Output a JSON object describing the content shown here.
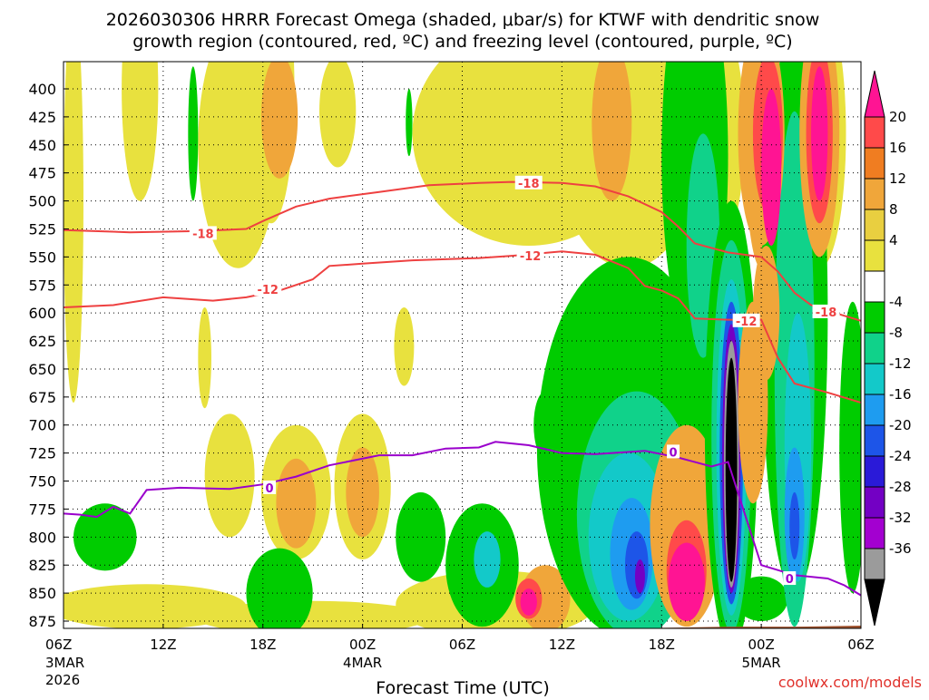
{
  "chart_data": {
    "type": "heatmap",
    "title_line1": "2026030306 HRRR Forecast Omega (shaded, μbar/s) for KTWF with dendritic snow",
    "title_line2": "growth region (contoured, red, ºC) and freezing level (contoured, purple, ºC)",
    "xlabel": "Forecast Time (UTC)",
    "credit": "coolwx.com/models",
    "x_hours_range": [
      0,
      48
    ],
    "y_range_hpa": [
      380,
      890
    ],
    "y_ticks": [
      400,
      425,
      450,
      475,
      500,
      525,
      550,
      575,
      600,
      625,
      650,
      675,
      700,
      725,
      750,
      775,
      800,
      825,
      850,
      875
    ],
    "x_ticks": [
      {
        "h": 0,
        "label": "06Z",
        "sub1": "3MAR",
        "sub2": "2026"
      },
      {
        "h": 6,
        "label": "12Z"
      },
      {
        "h": 12,
        "label": "18Z"
      },
      {
        "h": 18,
        "label": "00Z",
        "sub1": "4MAR"
      },
      {
        "h": 24,
        "label": "06Z"
      },
      {
        "h": 30,
        "label": "12Z"
      },
      {
        "h": 36,
        "label": "18Z"
      },
      {
        "h": 42,
        "label": "00Z",
        "sub1": "5MAR"
      },
      {
        "h": 48,
        "label": "06Z"
      }
    ],
    "colorbar": {
      "labels": [
        "20",
        "16",
        "12",
        "8",
        "4",
        "-4",
        "-8",
        "-12",
        "-16",
        "-20",
        "-24",
        "-28",
        "-32",
        "-36"
      ],
      "colors": [
        "#ff1493",
        "#ff4a4a",
        "#f07d21",
        "#f0a63a",
        "#e9cf40",
        "#e8e13e",
        "#ffffff",
        "#00cc00",
        "#10d28a",
        "#13c9c9",
        "#1e9cf0",
        "#1d55e8",
        "#2a1ad8",
        "#7300c4",
        "#a300d0",
        "#9b9b9b",
        "#000000"
      ]
    },
    "contours": [
      {
        "name": "-18 ºC",
        "label": "-18",
        "color": "#ee4040",
        "points": [
          [
            0,
            526
          ],
          [
            4,
            528
          ],
          [
            8,
            527
          ],
          [
            11,
            525
          ],
          [
            12,
            518
          ],
          [
            14,
            505
          ],
          [
            16,
            498
          ],
          [
            19,
            492
          ],
          [
            22,
            486
          ],
          [
            25,
            484
          ],
          [
            27,
            483
          ],
          [
            30,
            484
          ],
          [
            32,
            487
          ],
          [
            34,
            496
          ],
          [
            36,
            510
          ],
          [
            37,
            523
          ],
          [
            38,
            538
          ],
          [
            40,
            546
          ],
          [
            42,
            550
          ],
          [
            43,
            563
          ],
          [
            44,
            582
          ],
          [
            45,
            593
          ],
          [
            46,
            598
          ],
          [
            48,
            607
          ]
        ]
      },
      {
        "name": "-12 ºC",
        "label": "-12",
        "color": "#ee4040",
        "points": [
          [
            0,
            595
          ],
          [
            3,
            593
          ],
          [
            6,
            586
          ],
          [
            9,
            589
          ],
          [
            11,
            586
          ],
          [
            13,
            580
          ],
          [
            15,
            570
          ],
          [
            16,
            558
          ],
          [
            18,
            556
          ],
          [
            21,
            553
          ],
          [
            25,
            551
          ],
          [
            27,
            549
          ],
          [
            30,
            545
          ],
          [
            32,
            548
          ],
          [
            34,
            560
          ],
          [
            35,
            576
          ],
          [
            36,
            580
          ],
          [
            37,
            587
          ],
          [
            38,
            605
          ],
          [
            40,
            606
          ],
          [
            42,
            606
          ],
          [
            43,
            640
          ],
          [
            44,
            663
          ],
          [
            46,
            671
          ],
          [
            48,
            680
          ]
        ]
      },
      {
        "name": "0 ºC",
        "label": "0",
        "color": "#9a00cc",
        "points": [
          [
            0,
            779
          ],
          [
            1,
            780
          ],
          [
            2,
            782
          ],
          [
            3,
            773
          ],
          [
            4,
            779
          ],
          [
            5,
            758
          ],
          [
            7,
            756
          ],
          [
            10,
            757
          ],
          [
            12,
            753
          ],
          [
            14,
            746
          ],
          [
            16,
            736
          ],
          [
            19,
            727
          ],
          [
            21,
            727
          ],
          [
            23,
            721
          ],
          [
            25,
            720
          ],
          [
            26,
            715
          ],
          [
            28,
            718
          ],
          [
            30,
            725
          ],
          [
            32,
            726
          ],
          [
            35,
            723
          ],
          [
            37,
            729
          ],
          [
            39,
            737
          ],
          [
            40,
            733
          ],
          [
            42,
            825
          ],
          [
            44,
            834
          ],
          [
            46,
            837
          ],
          [
            47,
            843
          ],
          [
            48,
            852
          ]
        ]
      }
    ],
    "contour_labels": [
      {
        "text": "-18",
        "h": 8.4,
        "p": 529
      },
      {
        "text": "-18",
        "h": 28.0,
        "p": 484
      },
      {
        "text": "-18",
        "h": 45.9,
        "p": 599
      },
      {
        "text": "-12",
        "h": 12.3,
        "p": 579
      },
      {
        "text": "-12",
        "h": 28.1,
        "p": 549
      },
      {
        "text": "-12",
        "h": 41.1,
        "p": 607
      },
      {
        "text": "0",
        "h": 12.4,
        "p": 756
      },
      {
        "text": "0",
        "h": 36.7,
        "p": 724
      },
      {
        "text": "0",
        "h": 43.7,
        "p": 837
      }
    ],
    "terrain": {
      "color": "#a0522d",
      "points": [
        [
          0,
          887
        ],
        [
          4,
          889
        ],
        [
          8,
          888
        ],
        [
          12,
          889
        ],
        [
          16,
          889
        ],
        [
          20,
          887
        ],
        [
          24,
          886
        ],
        [
          28,
          884
        ],
        [
          32,
          883
        ],
        [
          36,
          881
        ],
        [
          40,
          880
        ],
        [
          44,
          880
        ],
        [
          48,
          879
        ]
      ]
    },
    "shading": [
      {
        "name": "yellow-band-left",
        "color": "#e8e13e",
        "h": 0.6,
        "p": 500,
        "rh": 0.6,
        "rp": 180
      },
      {
        "name": "yellow-bottom-band",
        "color": "#e8e13e",
        "h": 5,
        "p": 862,
        "rh": 6,
        "rp": 20
      },
      {
        "name": "yellow-bottom-band-2",
        "color": "#e8e13e",
        "h": 15,
        "p": 872,
        "rh": 7,
        "rp": 15
      },
      {
        "name": "yellow-top-1",
        "color": "#e8e13e",
        "h": 4.6,
        "p": 400,
        "rh": 1.1,
        "rp": 100
      },
      {
        "name": "yellow-top-2",
        "color": "#e8e13e",
        "h": 10.5,
        "p": 450,
        "rh": 2.4,
        "rp": 110
      },
      {
        "name": "yellow-top-3",
        "color": "#e8e13e",
        "h": 12.5,
        "p": 400,
        "rh": 1.4,
        "rp": 120
      },
      {
        "name": "yellow-top-4",
        "color": "#e8e13e",
        "h": 16.5,
        "p": 420,
        "rh": 1.1,
        "rp": 50
      },
      {
        "name": "yellow-top-5",
        "color": "#e8e13e",
        "h": 28,
        "p": 440,
        "rh": 7,
        "rp": 100
      },
      {
        "name": "yellow-top-6",
        "color": "#e8e13e",
        "h": 34,
        "p": 440,
        "rh": 4.5,
        "rp": 120
      },
      {
        "name": "yellow-top-7",
        "color": "#e8e13e",
        "h": 39,
        "p": 440,
        "rh": 2,
        "rp": 110
      },
      {
        "name": "yellow-top-8",
        "color": "#e8e13e",
        "h": 45.5,
        "p": 440,
        "rh": 1.6,
        "rp": 120
      },
      {
        "name": "yellow-mid-1",
        "color": "#e8e13e",
        "h": 20.5,
        "p": 630,
        "rh": 0.6,
        "rp": 35
      },
      {
        "name": "yellow-mid-2",
        "color": "#e8e13e",
        "h": 8.5,
        "p": 640,
        "rh": 0.4,
        "rp": 45
      },
      {
        "name": "yellow-mid-3",
        "color": "#e8e13e",
        "h": 43,
        "p": 650,
        "rh": 1.5,
        "rp": 80
      },
      {
        "name": "yellow-low-1",
        "color": "#e8e13e",
        "h": 10,
        "p": 745,
        "rh": 1.5,
        "rp": 55
      },
      {
        "name": "yellow-low-2",
        "color": "#e8e13e",
        "h": 14,
        "p": 760,
        "rh": 2.1,
        "rp": 60
      },
      {
        "name": "yellow-low-3",
        "color": "#e8e13e",
        "h": 18,
        "p": 755,
        "rh": 1.7,
        "rp": 65
      },
      {
        "name": "yellow-low-4",
        "color": "#e8e13e",
        "h": 26,
        "p": 860,
        "rh": 6,
        "rp": 30
      },
      {
        "name": "orange-top-1",
        "color": "#f0a63a",
        "h": 13,
        "p": 425,
        "rh": 1.1,
        "rp": 55
      },
      {
        "name": "orange-top-2",
        "color": "#f0a63a",
        "h": 33,
        "p": 430,
        "rh": 1.2,
        "rp": 70
      },
      {
        "name": "orange-top-3",
        "color": "#f0a63a",
        "h": 42,
        "p": 440,
        "rh": 1,
        "rp": 120
      },
      {
        "name": "orange-low-1",
        "color": "#f0a63a",
        "h": 14,
        "p": 770,
        "rh": 1.2,
        "rp": 40
      },
      {
        "name": "orange-low-2",
        "color": "#f0a63a",
        "h": 18,
        "p": 760,
        "rh": 1,
        "rp": 40
      },
      {
        "name": "orange-low-3",
        "color": "#f0a63a",
        "h": 29,
        "p": 855,
        "rh": 1.5,
        "rp": 30
      },
      {
        "name": "green-top-1",
        "color": "#00cc00",
        "h": 7.8,
        "p": 440,
        "rh": 0.3,
        "rp": 60
      },
      {
        "name": "green-top-2",
        "color": "#00cc00",
        "h": 20.8,
        "p": 430,
        "rh": 0.2,
        "rp": 30
      },
      {
        "name": "green-left-low",
        "color": "#00cc00",
        "h": 2.5,
        "p": 800,
        "rh": 1.9,
        "rp": 30
      },
      {
        "name": "green-left-low-2",
        "color": "#00cc00",
        "h": 13,
        "p": 850,
        "rh": 2,
        "rp": 40
      },
      {
        "name": "green-mid-1",
        "color": "#00cc00",
        "h": 21.5,
        "p": 800,
        "rh": 1.5,
        "rp": 40
      },
      {
        "name": "green-mid-2",
        "color": "#00cc00",
        "h": 25.2,
        "p": 825,
        "rh": 2.2,
        "rp": 55
      },
      {
        "name": "green-mid-3",
        "color": "#00cc00",
        "h": 29,
        "p": 700,
        "rh": 0.7,
        "rp": 30
      },
      {
        "name": "green-big",
        "color": "#00cc00",
        "h": 34,
        "p": 720,
        "rh": 5.5,
        "rp": 170
      },
      {
        "name": "green-upper-1",
        "color": "#00cc00",
        "h": 38,
        "p": 460,
        "rh": 2,
        "rp": 170
      },
      {
        "name": "green-upper-2",
        "color": "#00cc00",
        "h": 44,
        "p": 600,
        "rh": 2,
        "rp": 250
      },
      {
        "name": "green-right",
        "color": "#00cc00",
        "h": 47.5,
        "p": 720,
        "rh": 0.8,
        "rp": 130
      },
      {
        "name": "green-bottom-right",
        "color": "#00cc00",
        "h": 42,
        "p": 855,
        "rh": 1.6,
        "rp": 20
      },
      {
        "name": "teal-1",
        "color": "#10d28a",
        "h": 34.5,
        "p": 780,
        "rh": 3.6,
        "rp": 110
      },
      {
        "name": "teal-2",
        "color": "#10d28a",
        "h": 38.5,
        "p": 540,
        "rh": 1,
        "rp": 100
      },
      {
        "name": "teal-3",
        "color": "#10d28a",
        "h": 44,
        "p": 650,
        "rh": 1.2,
        "rp": 230
      },
      {
        "name": "cyan-1",
        "color": "#13c9c9",
        "h": 34,
        "p": 800,
        "rh": 2.4,
        "rp": 75
      },
      {
        "name": "cyan-2",
        "color": "#13c9c9",
        "h": 44.2,
        "p": 720,
        "rh": 0.8,
        "rp": 120
      },
      {
        "name": "cyan-3",
        "color": "#13c9c9",
        "h": 25.5,
        "p": 820,
        "rh": 0.8,
        "rp": 25
      },
      {
        "name": "blue-1",
        "color": "#1e9cf0",
        "h": 34.2,
        "p": 815,
        "rh": 1.3,
        "rp": 50
      },
      {
        "name": "dblue-1",
        "color": "#1d55e8",
        "h": 34.5,
        "p": 825,
        "rh": 0.7,
        "rp": 30
      },
      {
        "name": "purple-1",
        "color": "#7300c4",
        "h": 34.7,
        "p": 835,
        "rh": 0.3,
        "rp": 15
      },
      {
        "name": "orange-18z",
        "color": "#f0a63a",
        "h": 37.5,
        "p": 790,
        "rh": 2.2,
        "rp": 90
      },
      {
        "name": "red-18z",
        "color": "#ff4a4a",
        "h": 37.5,
        "p": 830,
        "rh": 1.2,
        "rp": 45
      },
      {
        "name": "magenta-18z",
        "color": "#ff1493",
        "h": 37.5,
        "p": 840,
        "rh": 1.1,
        "rp": 35
      },
      {
        "name": "core-green",
        "color": "#00cc00",
        "h": 40.2,
        "p": 700,
        "rh": 1.6,
        "rp": 200
      },
      {
        "name": "core-teal",
        "color": "#10d28a",
        "h": 40.2,
        "p": 710,
        "rh": 1.2,
        "rp": 175
      },
      {
        "name": "core-cyan",
        "color": "#13c9c9",
        "h": 40.2,
        "p": 720,
        "rh": 0.9,
        "rp": 150
      },
      {
        "name": "core-blue",
        "color": "#1d55e8",
        "h": 40.2,
        "p": 725,
        "rh": 0.7,
        "rp": 135
      },
      {
        "name": "core-purple",
        "color": "#7300c4",
        "h": 40.2,
        "p": 730,
        "rh": 0.55,
        "rp": 120
      },
      {
        "name": "core-gray",
        "color": "#9b9b9b",
        "h": 40.2,
        "p": 735,
        "rh": 0.45,
        "rp": 110
      },
      {
        "name": "core-black",
        "color": "#000000",
        "h": 40.2,
        "p": 740,
        "rh": 0.35,
        "rp": 100
      },
      {
        "name": "orange-2z-1",
        "color": "#f0a63a",
        "h": 42,
        "p": 440,
        "rh": 1.4,
        "rp": 100
      },
      {
        "name": "red-2z",
        "color": "#ff4a4a",
        "h": 42.4,
        "p": 440,
        "rh": 0.9,
        "rp": 70
      },
      {
        "name": "magenta-2z",
        "color": "#ff1493",
        "h": 42.6,
        "p": 470,
        "rh": 0.6,
        "rp": 70
      },
      {
        "name": "orange-right",
        "color": "#f0a63a",
        "h": 45.5,
        "p": 440,
        "rh": 1.2,
        "rp": 110
      },
      {
        "name": "red-right",
        "color": "#ff4a4a",
        "h": 45.5,
        "p": 440,
        "rh": 0.8,
        "rp": 80
      },
      {
        "name": "magenta-right",
        "color": "#ff1493",
        "h": 45.5,
        "p": 440,
        "rh": 0.5,
        "rp": 60
      },
      {
        "name": "orange-low-20z",
        "color": "#f0a63a",
        "h": 41.5,
        "p": 680,
        "rh": 0.9,
        "rp": 90
      },
      {
        "name": "red-low-left",
        "color": "#ff4a4a",
        "h": 28,
        "p": 855,
        "rh": 0.8,
        "rp": 18
      },
      {
        "name": "magenta-low-left",
        "color": "#ff1493",
        "h": 28,
        "p": 858,
        "rh": 0.5,
        "rp": 12
      },
      {
        "name": "blue-right",
        "color": "#1e9cf0",
        "h": 44,
        "p": 780,
        "rh": 0.6,
        "rp": 60
      },
      {
        "name": "dblue-right",
        "color": "#1d55e8",
        "h": 44,
        "p": 790,
        "rh": 0.3,
        "rp": 30
      },
      {
        "name": "orange-small-a",
        "color": "#f0a63a",
        "h": 42.3,
        "p": 600,
        "rh": 0.8,
        "rp": 60
      }
    ]
  }
}
